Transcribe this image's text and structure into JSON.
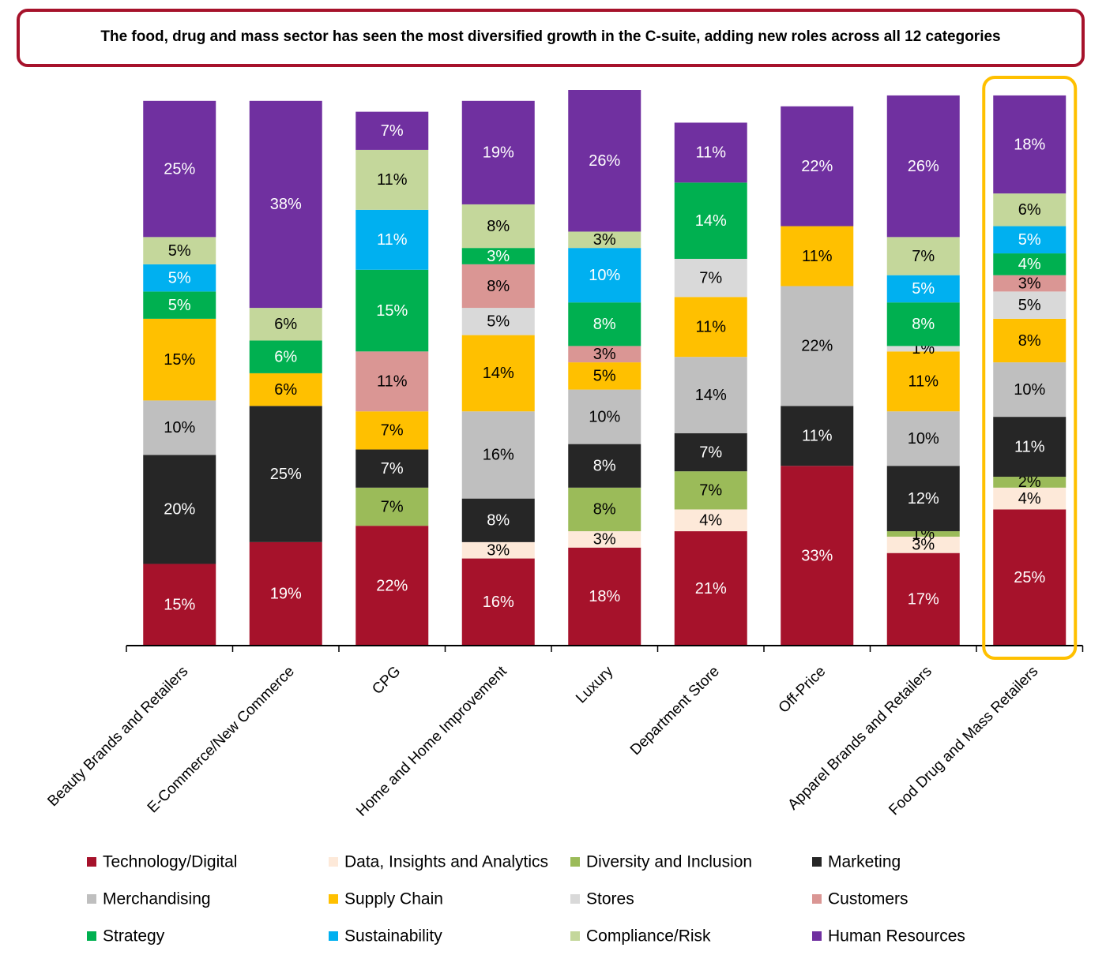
{
  "chart_data": {
    "type": "stacked_bar",
    "title": "The food, drug and mass sector has seen the most diversified growth in the C-suite, adding new roles across all 12 categories",
    "categories": [
      "Beauty Brands and Retailers",
      "E-Commerce/New Commerce",
      "CPG",
      "Home and Home Improvement",
      "Luxury",
      "Department Store",
      "Off-Price",
      "Apparel Brands and Retailers",
      "Food Drug and Mass Retailers"
    ],
    "ylim": [
      0,
      102
    ],
    "series": [
      {
        "name": "Technology/Digital",
        "color": "#a6122b",
        "label_color": "#ffffff",
        "values": [
          15,
          19,
          22,
          16,
          18,
          21,
          33,
          17,
          25
        ],
        "value_labels": [
          "15%",
          "19%",
          "22%",
          "16%",
          "18%",
          "21%",
          "33%",
          "17%",
          "25%"
        ]
      },
      {
        "name": "Data, Insights and Analytics",
        "color": "#fde9d9",
        "label_color": "#000000",
        "values": [
          null,
          null,
          null,
          3,
          3,
          4,
          null,
          3,
          4
        ],
        "value_labels": [
          null,
          null,
          null,
          "3%",
          "3%",
          "4%",
          null,
          "3%",
          "4%"
        ]
      },
      {
        "name": "Diversity and Inclusion",
        "color": "#9bbb59",
        "label_color": "#000000",
        "values": [
          null,
          null,
          7,
          null,
          8,
          7,
          null,
          1,
          2
        ],
        "value_labels": [
          null,
          null,
          "7%",
          null,
          "8%",
          "7%",
          null,
          "1%",
          "2%"
        ]
      },
      {
        "name": "Marketing",
        "color": "#262626",
        "label_color": "#ffffff",
        "values": [
          20,
          25,
          7,
          8,
          8,
          7,
          11,
          12,
          11
        ],
        "value_labels": [
          "20%",
          "25%",
          "7%",
          "8%",
          "8%",
          "7%",
          "11%",
          "12%",
          "11%"
        ]
      },
      {
        "name": "Merchandising",
        "color": "#bfbfbf",
        "label_color": "#000000",
        "values": [
          10,
          null,
          null,
          16,
          10,
          14,
          22,
          10,
          10
        ],
        "value_labels": [
          "10%",
          null,
          null,
          "16%",
          "10%",
          "14%",
          "22%",
          "10%",
          "10%"
        ]
      },
      {
        "name": "Supply Chain",
        "color": "#ffc000",
        "label_color": "#000000",
        "values": [
          15,
          6,
          7,
          14,
          5,
          11,
          11,
          11,
          8
        ],
        "value_labels": [
          "15%",
          "6%",
          "7%",
          "14%",
          "5%",
          "11%",
          "11%",
          "11%",
          "8%"
        ]
      },
      {
        "name": "Stores",
        "color": "#d9d9d9",
        "label_color": "#000000",
        "values": [
          null,
          null,
          null,
          5,
          null,
          7,
          null,
          1,
          5
        ],
        "value_labels": [
          null,
          null,
          null,
          "5%",
          null,
          "7%",
          null,
          "1%",
          "5%"
        ]
      },
      {
        "name": "Customers",
        "color": "#da9694",
        "label_color": "#000000",
        "values": [
          null,
          null,
          11,
          8,
          3,
          null,
          null,
          null,
          3
        ],
        "value_labels": [
          null,
          null,
          "11%",
          "8%",
          "3%",
          null,
          null,
          null,
          "3%"
        ]
      },
      {
        "name": "Strategy",
        "color": "#00b050",
        "label_color": "#ffffff",
        "values": [
          5,
          6,
          15,
          3,
          8,
          14,
          null,
          8,
          4
        ],
        "value_labels": [
          "5%",
          "6%",
          "15%",
          "3%",
          "8%",
          "14%",
          null,
          "8%",
          "4%"
        ]
      },
      {
        "name": "Sustainability",
        "color": "#00b0f0",
        "label_color": "#ffffff",
        "values": [
          5,
          null,
          11,
          null,
          10,
          null,
          null,
          5,
          5
        ],
        "value_labels": [
          "5%",
          null,
          "11%",
          null,
          "10%",
          null,
          null,
          "5%",
          "5%"
        ]
      },
      {
        "name": "Compliance/Risk",
        "color": "#c4d79b",
        "label_color": "#000000",
        "values": [
          5,
          6,
          11,
          8,
          3,
          null,
          null,
          7,
          6
        ],
        "value_labels": [
          "5%",
          "6%",
          "11%",
          "8%",
          "3%",
          null,
          null,
          "7%",
          "6%"
        ]
      },
      {
        "name": "Human Resources",
        "color": "#7030a0",
        "label_color": "#ffffff",
        "values": [
          25,
          38,
          7,
          19,
          26,
          11,
          22,
          26,
          18
        ],
        "value_labels": [
          "25%",
          "38%",
          "7%",
          "19%",
          "26%",
          "11%",
          "22%",
          "26%",
          "18%"
        ]
      }
    ]
  }
}
